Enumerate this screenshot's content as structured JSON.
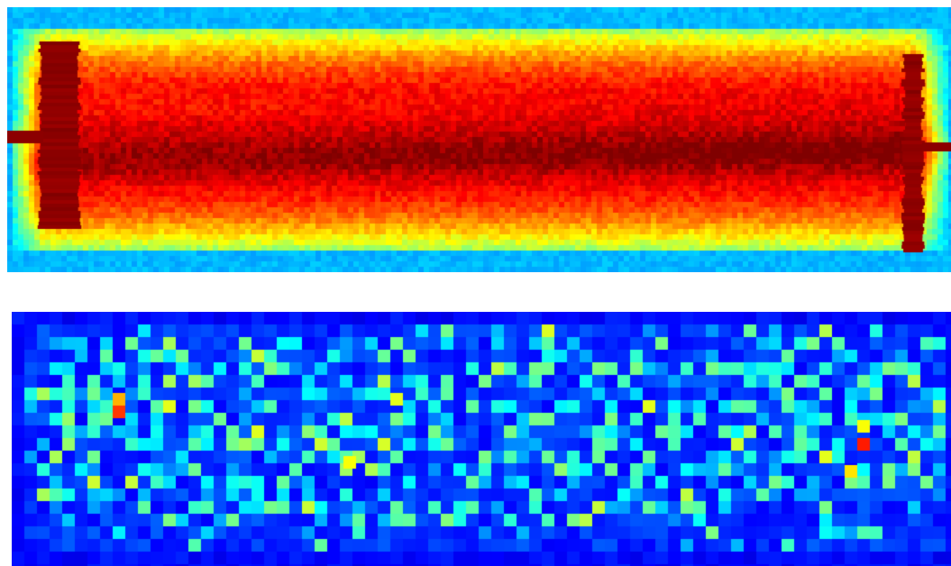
{
  "figure": {
    "colormap": "jet",
    "background_color": "#ffffff",
    "panels": [
      {
        "id": "top",
        "description_kind": "heatmap-intense",
        "border_color": "#2a66ff",
        "base_color": "#1f7dff"
      },
      {
        "id": "bottom",
        "description_kind": "heatmap-sparse",
        "base_color": "#0b1fb8"
      }
    ]
  }
}
